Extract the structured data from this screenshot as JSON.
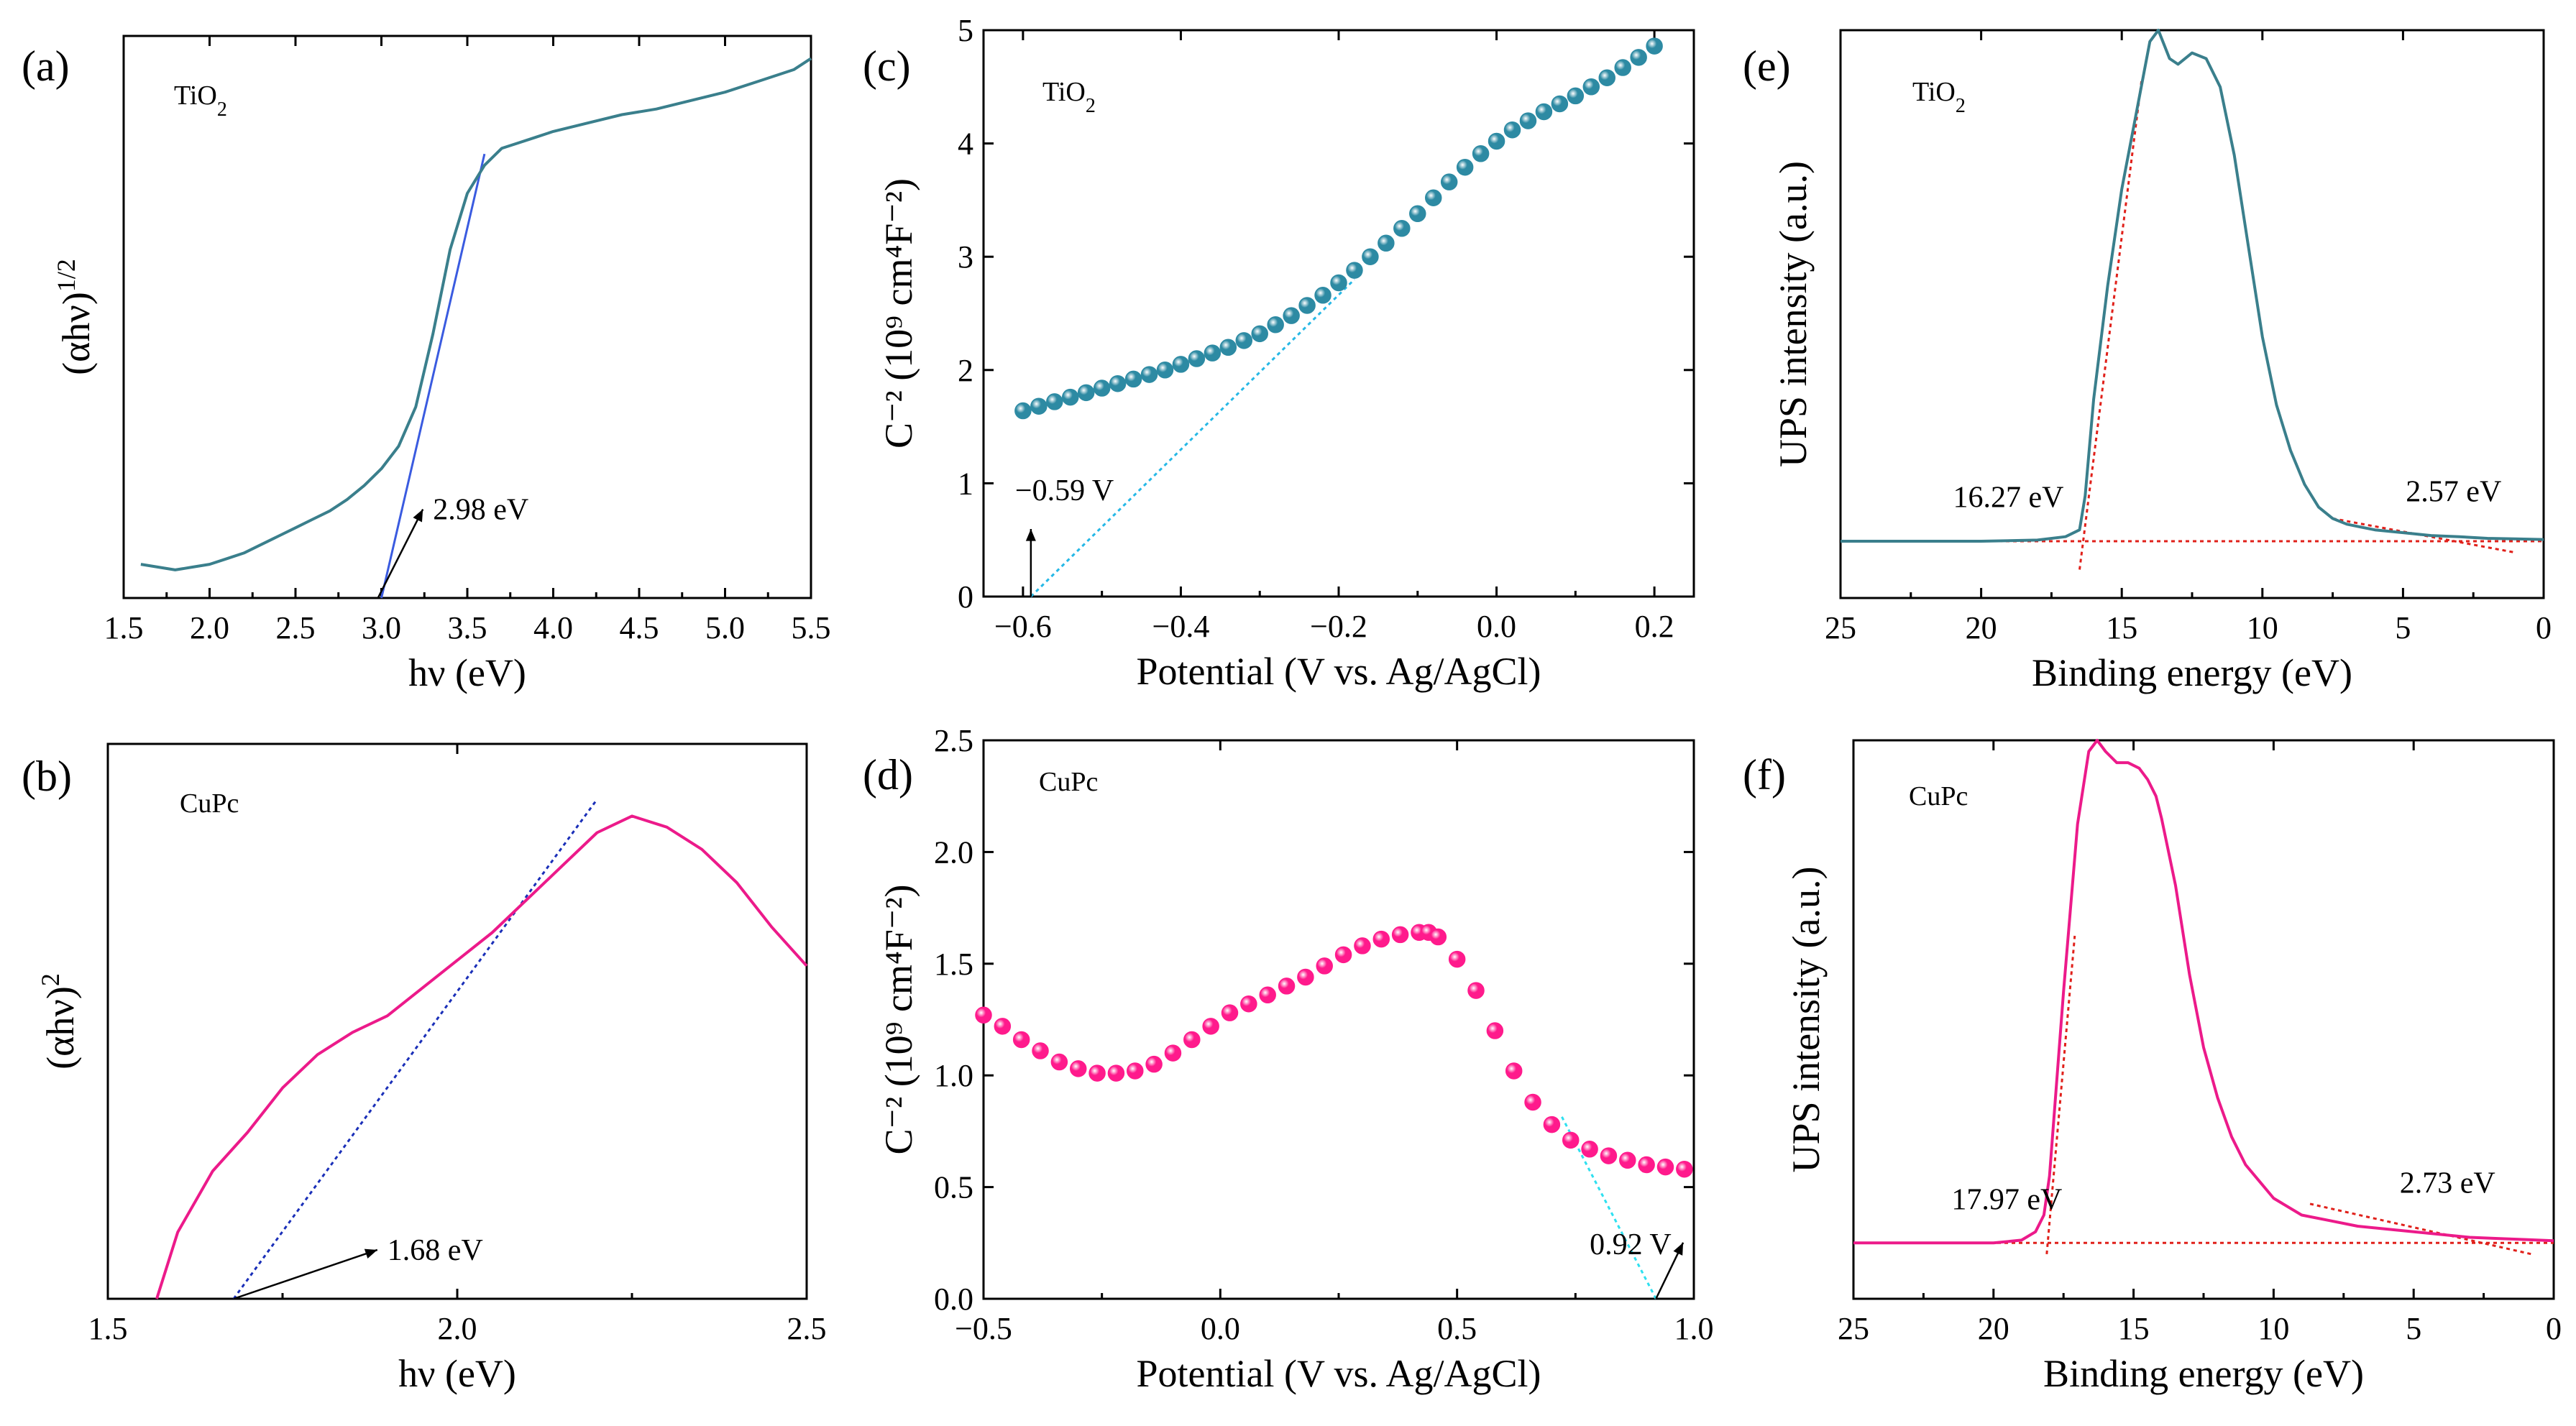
{
  "colors": {
    "tio2": "#3a7f8c",
    "cupc": "#ec1a8a",
    "fit_blue": "#3a5be0",
    "fit_navy": "#1a2fb8",
    "fit_cyan": "#26b8e6",
    "fit_aqua": "#2ee0f0",
    "baseline_red": "#e0201a",
    "ball_tio2": "#2d8aa3",
    "ball_cupc": "#ff1a8c"
  },
  "chart_data": [
    {
      "id": "a",
      "panel_label": "(a)",
      "type": "line",
      "sample": "TiO",
      "sample_sub": "2",
      "xlabel": "hν (eV)",
      "ylabel": "(αhν)",
      "ylabel_sup": "1/2",
      "xlim": [
        1.5,
        5.5
      ],
      "ylim": [
        0,
        1
      ],
      "xticks": [
        "1.5",
        "2.0",
        "2.5",
        "3.0",
        "3.5",
        "4.0",
        "4.5",
        "5.0",
        "5.5"
      ],
      "yticks": [],
      "series": [
        {
          "name": "TiO2",
          "color_key": "tio2",
          "x": [
            1.6,
            1.7,
            1.8,
            1.9,
            2.0,
            2.1,
            2.2,
            2.3,
            2.4,
            2.5,
            2.6,
            2.7,
            2.8,
            2.9,
            3.0,
            3.1,
            3.2,
            3.3,
            3.4,
            3.5,
            3.6,
            3.7,
            3.8,
            3.9,
            4.0,
            4.2,
            4.4,
            4.6,
            4.8,
            5.0,
            5.2,
            5.4,
            5.5
          ],
          "y": [
            0.06,
            0.055,
            0.05,
            0.055,
            0.06,
            0.07,
            0.08,
            0.095,
            0.11,
            0.125,
            0.14,
            0.155,
            0.175,
            0.2,
            0.23,
            0.27,
            0.34,
            0.47,
            0.62,
            0.72,
            0.77,
            0.8,
            0.81,
            0.82,
            0.83,
            0.845,
            0.86,
            0.87,
            0.885,
            0.9,
            0.92,
            0.94,
            0.96
          ]
        }
      ],
      "fit_lines": [
        {
          "color_key": "fit_blue",
          "dash": false,
          "x": [
            3.0,
            3.6
          ],
          "y": [
            0.0,
            0.79
          ]
        }
      ],
      "annotations": [
        {
          "text": "2.98 eV",
          "arrow_to": [
            2.98,
            0.0
          ],
          "text_at": [
            3.3,
            0.14
          ]
        }
      ]
    },
    {
      "id": "b",
      "panel_label": "(b)",
      "type": "line",
      "sample": "CuPc",
      "sample_sub": "",
      "xlabel": "hν (eV)",
      "ylabel": "(αhν)",
      "ylabel_sup": "2",
      "xlim": [
        1.5,
        2.5
      ],
      "ylim": [
        0,
        1
      ],
      "xticks": [
        "1.5",
        "2.0",
        "2.5"
      ],
      "yticks": [],
      "series": [
        {
          "name": "CuPc",
          "color_key": "cupc",
          "x": [
            1.57,
            1.6,
            1.65,
            1.7,
            1.75,
            1.8,
            1.85,
            1.9,
            1.95,
            2.0,
            2.05,
            2.1,
            2.15,
            2.2,
            2.25,
            2.3,
            2.35,
            2.4,
            2.45,
            2.5
          ],
          "y": [
            0.0,
            0.12,
            0.23,
            0.3,
            0.38,
            0.44,
            0.48,
            0.51,
            0.56,
            0.61,
            0.66,
            0.72,
            0.78,
            0.84,
            0.87,
            0.85,
            0.81,
            0.75,
            0.67,
            0.6
          ]
        }
      ],
      "fit_lines": [
        {
          "color_key": "fit_navy",
          "dash": true,
          "x": [
            1.68,
            2.2
          ],
          "y": [
            0.0,
            0.9
          ]
        }
      ],
      "annotations": [
        {
          "text": "1.68 eV",
          "arrow_to": [
            1.68,
            0.0
          ],
          "text_at": [
            1.9,
            0.07
          ]
        }
      ]
    },
    {
      "id": "c",
      "panel_label": "(c)",
      "type": "scatter",
      "sample": "TiO",
      "sample_sub": "2",
      "xlabel": "Potential (V vs. Ag/AgCl)",
      "ylabel": "C⁻² (10⁹ cm⁴F⁻²)",
      "xlim": [
        -0.65,
        0.25
      ],
      "ylim": [
        0,
        5
      ],
      "xticks": [
        "−0.6",
        "−0.4",
        "−0.2",
        "0.0",
        "0.2"
      ],
      "yticks": [
        "0",
        "1",
        "2",
        "3",
        "4",
        "5"
      ],
      "series": [
        {
          "name": "TiO2",
          "color_key": "ball_tio2",
          "x": [
            -0.6,
            -0.58,
            -0.56,
            -0.54,
            -0.52,
            -0.5,
            -0.48,
            -0.46,
            -0.44,
            -0.42,
            -0.4,
            -0.38,
            -0.36,
            -0.34,
            -0.32,
            -0.3,
            -0.28,
            -0.26,
            -0.24,
            -0.22,
            -0.2,
            -0.18,
            -0.16,
            -0.14,
            -0.12,
            -0.1,
            -0.08,
            -0.06,
            -0.04,
            -0.02,
            0.0,
            0.02,
            0.04,
            0.06,
            0.08,
            0.1,
            0.12,
            0.14,
            0.16,
            0.18,
            0.2
          ],
          "y": [
            1.64,
            1.68,
            1.72,
            1.76,
            1.8,
            1.84,
            1.88,
            1.92,
            1.96,
            2.0,
            2.05,
            2.1,
            2.15,
            2.2,
            2.26,
            2.32,
            2.4,
            2.48,
            2.57,
            2.66,
            2.77,
            2.88,
            3.0,
            3.12,
            3.25,
            3.38,
            3.52,
            3.66,
            3.79,
            3.91,
            4.02,
            4.12,
            4.2,
            4.28,
            4.35,
            4.42,
            4.5,
            4.58,
            4.67,
            4.76,
            4.86
          ]
        }
      ],
      "fit_lines": [
        {
          "color_key": "fit_cyan",
          "dash": true,
          "x": [
            -0.59,
            -0.18
          ],
          "y": [
            0.0,
            2.8
          ]
        }
      ],
      "annotations": [
        {
          "text": "−0.59 V",
          "arrow_to": [
            -0.59,
            0.0
          ],
          "text_at": [
            -0.61,
            0.85
          ]
        }
      ]
    },
    {
      "id": "d",
      "panel_label": "(d)",
      "type": "scatter",
      "sample": "CuPc",
      "sample_sub": "",
      "xlabel": "Potential (V vs. Ag/AgCl)",
      "ylabel": "C⁻² (10⁹ cm⁴F⁻²)",
      "xlim": [
        -0.5,
        1.0
      ],
      "ylim": [
        0,
        2.5
      ],
      "xticks": [
        "−0.5",
        "0.0",
        "0.5",
        "1.0"
      ],
      "yticks": [
        "0.0",
        "0.5",
        "1.0",
        "1.5",
        "2.0",
        "2.5"
      ],
      "series": [
        {
          "name": "CuPc",
          "color_key": "ball_cupc",
          "x": [
            -0.5,
            -0.46,
            -0.42,
            -0.38,
            -0.34,
            -0.3,
            -0.26,
            -0.22,
            -0.18,
            -0.14,
            -0.1,
            -0.06,
            -0.02,
            0.02,
            0.06,
            0.1,
            0.14,
            0.18,
            0.22,
            0.26,
            0.3,
            0.34,
            0.38,
            0.42,
            0.44,
            0.46,
            0.5,
            0.54,
            0.58,
            0.62,
            0.66,
            0.7,
            0.74,
            0.78,
            0.82,
            0.86,
            0.9,
            0.94,
            0.98
          ],
          "y": [
            1.27,
            1.22,
            1.16,
            1.11,
            1.06,
            1.03,
            1.01,
            1.01,
            1.02,
            1.05,
            1.1,
            1.16,
            1.22,
            1.28,
            1.32,
            1.36,
            1.4,
            1.44,
            1.49,
            1.54,
            1.58,
            1.61,
            1.63,
            1.64,
            1.64,
            1.62,
            1.52,
            1.38,
            1.2,
            1.02,
            0.88,
            0.78,
            0.71,
            0.67,
            0.64,
            0.62,
            0.6,
            0.59,
            0.58
          ]
        }
      ],
      "fit_lines": [
        {
          "color_key": "fit_aqua",
          "dash": true,
          "x": [
            0.92,
            0.72
          ],
          "y": [
            0.0,
            0.82
          ]
        }
      ],
      "annotations": [
        {
          "text": "0.92 V",
          "arrow_to": [
            0.92,
            0.0
          ],
          "text_at": [
            0.78,
            0.2
          ]
        }
      ]
    },
    {
      "id": "e",
      "panel_label": "(e)",
      "type": "line",
      "sample": "TiO",
      "sample_sub": "2",
      "xlabel": "Binding energy (eV)",
      "ylabel": "UPS intensity (a.u.)",
      "xlim": [
        25,
        0
      ],
      "ylim": [
        0,
        1
      ],
      "xreverse": true,
      "xticks": [
        "25",
        "20",
        "15",
        "10",
        "5",
        "0"
      ],
      "yticks": [],
      "series": [
        {
          "name": "TiO2",
          "color_key": "tio2",
          "x": [
            25,
            22,
            20,
            18,
            17,
            16.5,
            16.3,
            16,
            15.5,
            15,
            14.5,
            14,
            13.7,
            13.3,
            13,
            12.5,
            12,
            11.5,
            11,
            10.5,
            10,
            9.5,
            9,
            8.5,
            8,
            7.5,
            7,
            6.5,
            6,
            5,
            4,
            3,
            2,
            1,
            0
          ],
          "y": [
            0.1,
            0.1,
            0.1,
            0.102,
            0.108,
            0.12,
            0.18,
            0.35,
            0.55,
            0.72,
            0.85,
            0.98,
            1.0,
            0.95,
            0.94,
            0.96,
            0.95,
            0.9,
            0.78,
            0.62,
            0.46,
            0.34,
            0.26,
            0.2,
            0.16,
            0.14,
            0.13,
            0.125,
            0.12,
            0.115,
            0.11,
            0.108,
            0.105,
            0.104,
            0.103
          ]
        }
      ],
      "fit_lines": [
        {
          "color_key": "baseline_red",
          "dash": true,
          "x": [
            25,
            0
          ],
          "y": [
            0.1,
            0.1
          ]
        },
        {
          "color_key": "baseline_red",
          "dash": true,
          "x": [
            16.5,
            14.3
          ],
          "y": [
            0.05,
            0.91
          ]
        },
        {
          "color_key": "baseline_red",
          "dash": true,
          "x": [
            7.5,
            1
          ],
          "y": [
            0.14,
            0.08
          ]
        }
      ],
      "annotations": [
        {
          "text": "16.27 eV",
          "text_at": [
            21.0,
            0.16
          ]
        },
        {
          "text": "2.57 eV",
          "text_at": [
            4.9,
            0.17
          ]
        }
      ]
    },
    {
      "id": "f",
      "panel_label": "(f)",
      "type": "line",
      "sample": "CuPc",
      "sample_sub": "",
      "xlabel": "Binding energy (eV)",
      "ylabel": "UPS intensity (a.u.)",
      "xlim": [
        25,
        0
      ],
      "ylim": [
        0,
        1
      ],
      "xreverse": true,
      "xticks": [
        "25",
        "20",
        "15",
        "10",
        "5",
        "0"
      ],
      "yticks": [],
      "series": [
        {
          "name": "CuPc",
          "color_key": "cupc",
          "x": [
            25,
            22,
            20,
            19,
            18.5,
            18.2,
            18,
            17.5,
            17,
            16.6,
            16.3,
            16,
            15.6,
            15.2,
            14.8,
            14.5,
            14.2,
            14,
            13.5,
            13,
            12.5,
            12,
            11.5,
            11,
            10.5,
            10,
            9,
            8,
            7,
            6,
            5,
            4,
            3,
            2,
            1,
            0
          ],
          "y": [
            0.1,
            0.1,
            0.1,
            0.105,
            0.12,
            0.15,
            0.22,
            0.55,
            0.85,
            0.98,
            1.0,
            0.98,
            0.96,
            0.96,
            0.95,
            0.93,
            0.9,
            0.86,
            0.74,
            0.58,
            0.45,
            0.36,
            0.29,
            0.24,
            0.21,
            0.18,
            0.15,
            0.14,
            0.13,
            0.125,
            0.12,
            0.115,
            0.11,
            0.108,
            0.106,
            0.104
          ]
        }
      ],
      "fit_lines": [
        {
          "color_key": "baseline_red",
          "dash": true,
          "x": [
            25,
            0
          ],
          "y": [
            0.1,
            0.1
          ]
        },
        {
          "color_key": "baseline_red",
          "dash": true,
          "x": [
            18.1,
            17.1
          ],
          "y": [
            0.08,
            0.65
          ]
        },
        {
          "color_key": "baseline_red",
          "dash": true,
          "x": [
            8.7,
            0.8
          ],
          "y": [
            0.17,
            0.08
          ]
        }
      ],
      "annotations": [
        {
          "text": "17.97 eV",
          "text_at": [
            21.5,
            0.16
          ]
        },
        {
          "text": "2.73 eV",
          "text_at": [
            5.5,
            0.19
          ]
        }
      ]
    }
  ]
}
